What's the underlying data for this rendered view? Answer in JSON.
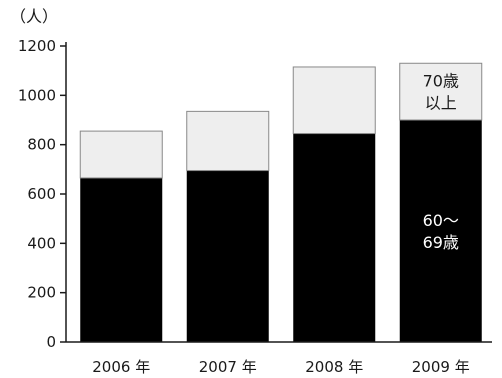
{
  "chart_data": {
    "type": "bar",
    "stacked": true,
    "unit": "（人）",
    "categories": [
      "2006 年",
      "2007 年",
      "2008 年",
      "2009 年"
    ],
    "series": [
      {
        "name_lines": [
          "60〜",
          "69歳"
        ],
        "values": [
          665,
          695,
          845,
          900
        ],
        "color": "#000000",
        "label_color": "#ffffff"
      },
      {
        "name_lines": [
          "70歳",
          "以上"
        ],
        "values": [
          190,
          240,
          270,
          230
        ],
        "color": "#eeeeee",
        "label_color": "#1a1a1a"
      }
    ],
    "ylim": [
      0,
      1200
    ],
    "yticks": [
      0,
      200,
      400,
      600,
      800,
      1000,
      1200
    ],
    "grid": false
  }
}
